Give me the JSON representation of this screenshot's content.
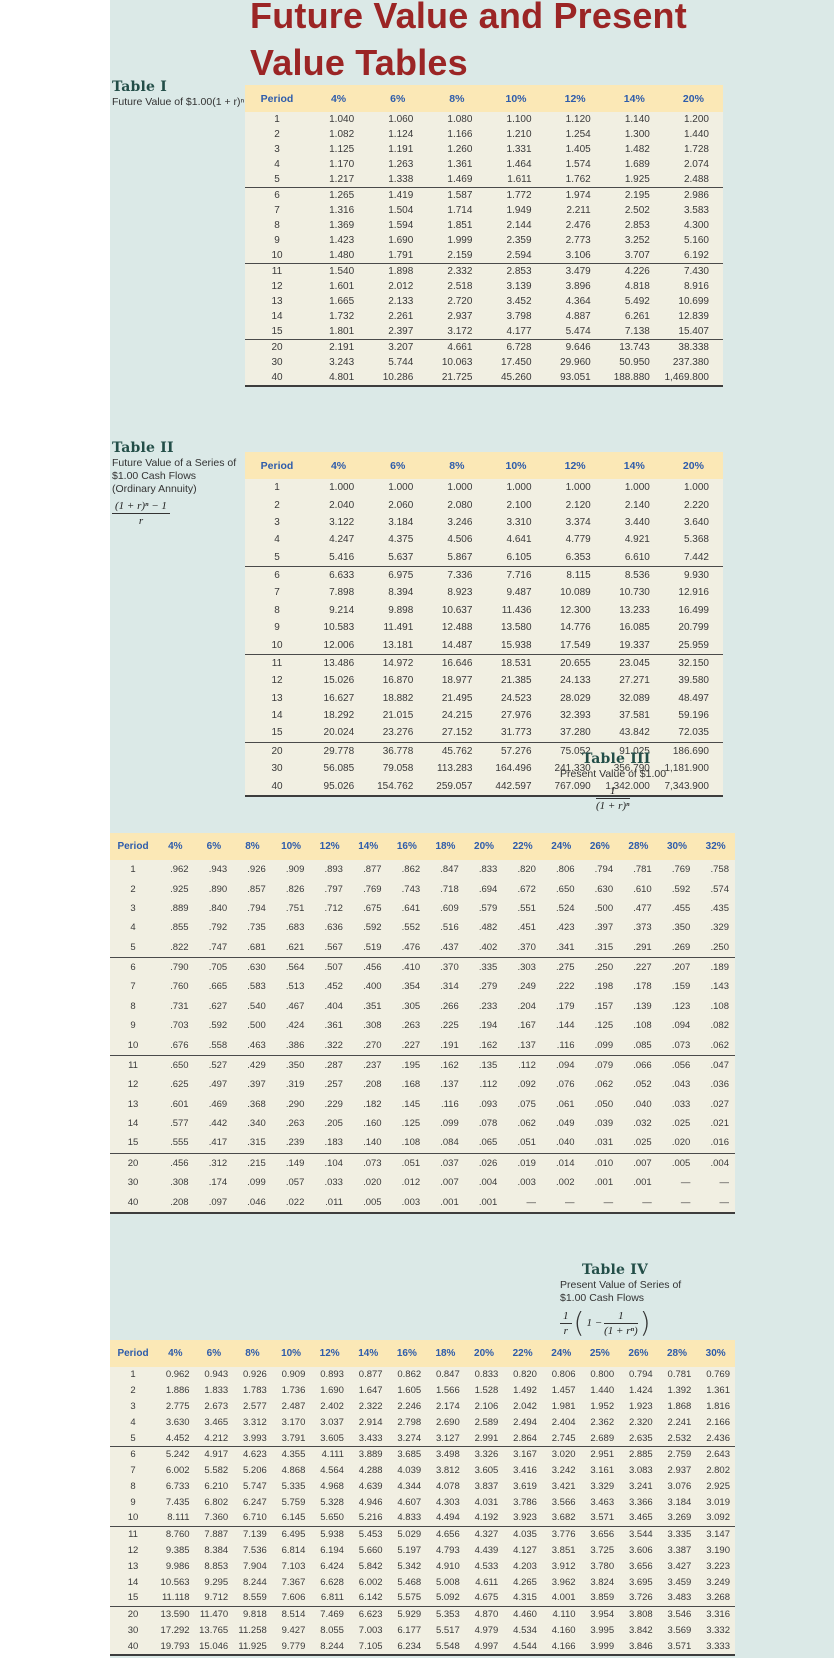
{
  "page": {
    "title_line1": "Future Value and Present",
    "title_line2": "Value Tables"
  },
  "colors": {
    "page_bg": "#dbe9e7",
    "title_text": "#9b2525",
    "table_label_text": "#234e48",
    "header_band": "#fbe8b6",
    "header_text": "#2e5cab",
    "table_body": "#f1efe2"
  },
  "tables": [
    {
      "label": "Table I",
      "desc": [
        "Future Value of $1.00(1 + r)ⁿ"
      ],
      "columns": [
        "Period",
        "4%",
        "6%",
        "8%",
        "10%",
        "12%",
        "14%",
        "20%"
      ],
      "group_after": [
        4,
        9,
        14
      ],
      "rows": [
        [
          "1",
          "1.040",
          "1.060",
          "1.080",
          "1.100",
          "1.120",
          "1.140",
          "1.200"
        ],
        [
          "2",
          "1.082",
          "1.124",
          "1.166",
          "1.210",
          "1.254",
          "1.300",
          "1.440"
        ],
        [
          "3",
          "1.125",
          "1.191",
          "1.260",
          "1.331",
          "1.405",
          "1.482",
          "1.728"
        ],
        [
          "4",
          "1.170",
          "1.263",
          "1.361",
          "1.464",
          "1.574",
          "1.689",
          "2.074"
        ],
        [
          "5",
          "1.217",
          "1.338",
          "1.469",
          "1.611",
          "1.762",
          "1.925",
          "2.488"
        ],
        [
          "6",
          "1.265",
          "1.419",
          "1.587",
          "1.772",
          "1.974",
          "2.195",
          "2.986"
        ],
        [
          "7",
          "1.316",
          "1.504",
          "1.714",
          "1.949",
          "2.211",
          "2.502",
          "3.583"
        ],
        [
          "8",
          "1.369",
          "1.594",
          "1.851",
          "2.144",
          "2.476",
          "2.853",
          "4.300"
        ],
        [
          "9",
          "1.423",
          "1.690",
          "1.999",
          "2.359",
          "2.773",
          "3.252",
          "5.160"
        ],
        [
          "10",
          "1.480",
          "1.791",
          "2.159",
          "2.594",
          "3.106",
          "3.707",
          "6.192"
        ],
        [
          "11",
          "1.540",
          "1.898",
          "2.332",
          "2.853",
          "3.479",
          "4.226",
          "7.430"
        ],
        [
          "12",
          "1.601",
          "2.012",
          "2.518",
          "3.139",
          "3.896",
          "4.818",
          "8.916"
        ],
        [
          "13",
          "1.665",
          "2.133",
          "2.720",
          "3.452",
          "4.364",
          "5.492",
          "10.699"
        ],
        [
          "14",
          "1.732",
          "2.261",
          "2.937",
          "3.798",
          "4.887",
          "6.261",
          "12.839"
        ],
        [
          "15",
          "1.801",
          "2.397",
          "3.172",
          "4.177",
          "5.474",
          "7.138",
          "15.407"
        ],
        [
          "20",
          "2.191",
          "3.207",
          "4.661",
          "6.728",
          "9.646",
          "13.743",
          "38.338"
        ],
        [
          "30",
          "3.243",
          "5.744",
          "10.063",
          "17.450",
          "29.960",
          "50.950",
          "237.380"
        ],
        [
          "40",
          "4.801",
          "10.286",
          "21.725",
          "45.260",
          "93.051",
          "188.880",
          "1,469.800"
        ]
      ]
    },
    {
      "label": "Table II",
      "desc": [
        "Future Value of a Series of",
        "$1.00 Cash Flows",
        "(Ordinary Annuity)"
      ],
      "formula": {
        "num": "(1 + r)ⁿ − 1",
        "den": "r"
      },
      "columns": [
        "Period",
        "4%",
        "6%",
        "8%",
        "10%",
        "12%",
        "14%",
        "20%"
      ],
      "group_after": [
        4,
        9,
        14
      ],
      "rows": [
        [
          "1",
          "1.000",
          "1.000",
          "1.000",
          "1.000",
          "1.000",
          "1.000",
          "1.000"
        ],
        [
          "2",
          "2.040",
          "2.060",
          "2.080",
          "2.100",
          "2.120",
          "2.140",
          "2.220"
        ],
        [
          "3",
          "3.122",
          "3.184",
          "3.246",
          "3.310",
          "3.374",
          "3.440",
          "3.640"
        ],
        [
          "4",
          "4.247",
          "4.375",
          "4.506",
          "4.641",
          "4.779",
          "4.921",
          "5.368"
        ],
        [
          "5",
          "5.416",
          "5.637",
          "5.867",
          "6.105",
          "6.353",
          "6.610",
          "7.442"
        ],
        [
          "6",
          "6.633",
          "6.975",
          "7.336",
          "7.716",
          "8.115",
          "8.536",
          "9.930"
        ],
        [
          "7",
          "7.898",
          "8.394",
          "8.923",
          "9.487",
          "10.089",
          "10.730",
          "12.916"
        ],
        [
          "8",
          "9.214",
          "9.898",
          "10.637",
          "11.436",
          "12.300",
          "13.233",
          "16.499"
        ],
        [
          "9",
          "10.583",
          "11.491",
          "12.488",
          "13.580",
          "14.776",
          "16.085",
          "20.799"
        ],
        [
          "10",
          "12.006",
          "13.181",
          "14.487",
          "15.938",
          "17.549",
          "19.337",
          "25.959"
        ],
        [
          "11",
          "13.486",
          "14.972",
          "16.646",
          "18.531",
          "20.655",
          "23.045",
          "32.150"
        ],
        [
          "12",
          "15.026",
          "16.870",
          "18.977",
          "21.385",
          "24.133",
          "27.271",
          "39.580"
        ],
        [
          "13",
          "16.627",
          "18.882",
          "21.495",
          "24.523",
          "28.029",
          "32.089",
          "48.497"
        ],
        [
          "14",
          "18.292",
          "21.015",
          "24.215",
          "27.976",
          "32.393",
          "37.581",
          "59.196"
        ],
        [
          "15",
          "20.024",
          "23.276",
          "27.152",
          "31.773",
          "37.280",
          "43.842",
          "72.035"
        ],
        [
          "20",
          "29.778",
          "36.778",
          "45.762",
          "57.276",
          "75.052",
          "91.025",
          "186.690"
        ],
        [
          "30",
          "56.085",
          "79.058",
          "113.283",
          "164.496",
          "241.330",
          "356.790",
          "1,181.900"
        ],
        [
          "40",
          "95.026",
          "154.762",
          "259.057",
          "442.597",
          "767.090",
          "1,342.000",
          "7,343.900"
        ]
      ]
    },
    {
      "label": "Table III",
      "desc": [
        "Present Value of $1.00"
      ],
      "formula": {
        "num": "1",
        "den": "(1 + r)ⁿ"
      },
      "columns": [
        "Period",
        "4%",
        "6%",
        "8%",
        "10%",
        "12%",
        "14%",
        "16%",
        "18%",
        "20%",
        "22%",
        "24%",
        "26%",
        "28%",
        "30%",
        "32%"
      ],
      "group_after": [
        4,
        9,
        14
      ],
      "rows": [
        [
          "1",
          ".962",
          ".943",
          ".926",
          ".909",
          ".893",
          ".877",
          ".862",
          ".847",
          ".833",
          ".820",
          ".806",
          ".794",
          ".781",
          ".769",
          ".758"
        ],
        [
          "2",
          ".925",
          ".890",
          ".857",
          ".826",
          ".797",
          ".769",
          ".743",
          ".718",
          ".694",
          ".672",
          ".650",
          ".630",
          ".610",
          ".592",
          ".574"
        ],
        [
          "3",
          ".889",
          ".840",
          ".794",
          ".751",
          ".712",
          ".675",
          ".641",
          ".609",
          ".579",
          ".551",
          ".524",
          ".500",
          ".477",
          ".455",
          ".435"
        ],
        [
          "4",
          ".855",
          ".792",
          ".735",
          ".683",
          ".636",
          ".592",
          ".552",
          ".516",
          ".482",
          ".451",
          ".423",
          ".397",
          ".373",
          ".350",
          ".329"
        ],
        [
          "5",
          ".822",
          ".747",
          ".681",
          ".621",
          ".567",
          ".519",
          ".476",
          ".437",
          ".402",
          ".370",
          ".341",
          ".315",
          ".291",
          ".269",
          ".250"
        ],
        [
          "6",
          ".790",
          ".705",
          ".630",
          ".564",
          ".507",
          ".456",
          ".410",
          ".370",
          ".335",
          ".303",
          ".275",
          ".250",
          ".227",
          ".207",
          ".189"
        ],
        [
          "7",
          ".760",
          ".665",
          ".583",
          ".513",
          ".452",
          ".400",
          ".354",
          ".314",
          ".279",
          ".249",
          ".222",
          ".198",
          ".178",
          ".159",
          ".143"
        ],
        [
          "8",
          ".731",
          ".627",
          ".540",
          ".467",
          ".404",
          ".351",
          ".305",
          ".266",
          ".233",
          ".204",
          ".179",
          ".157",
          ".139",
          ".123",
          ".108"
        ],
        [
          "9",
          ".703",
          ".592",
          ".500",
          ".424",
          ".361",
          ".308",
          ".263",
          ".225",
          ".194",
          ".167",
          ".144",
          ".125",
          ".108",
          ".094",
          ".082"
        ],
        [
          "10",
          ".676",
          ".558",
          ".463",
          ".386",
          ".322",
          ".270",
          ".227",
          ".191",
          ".162",
          ".137",
          ".116",
          ".099",
          ".085",
          ".073",
          ".062"
        ],
        [
          "11",
          ".650",
          ".527",
          ".429",
          ".350",
          ".287",
          ".237",
          ".195",
          ".162",
          ".135",
          ".112",
          ".094",
          ".079",
          ".066",
          ".056",
          ".047"
        ],
        [
          "12",
          ".625",
          ".497",
          ".397",
          ".319",
          ".257",
          ".208",
          ".168",
          ".137",
          ".112",
          ".092",
          ".076",
          ".062",
          ".052",
          ".043",
          ".036"
        ],
        [
          "13",
          ".601",
          ".469",
          ".368",
          ".290",
          ".229",
          ".182",
          ".145",
          ".116",
          ".093",
          ".075",
          ".061",
          ".050",
          ".040",
          ".033",
          ".027"
        ],
        [
          "14",
          ".577",
          ".442",
          ".340",
          ".263",
          ".205",
          ".160",
          ".125",
          ".099",
          ".078",
          ".062",
          ".049",
          ".039",
          ".032",
          ".025",
          ".021"
        ],
        [
          "15",
          ".555",
          ".417",
          ".315",
          ".239",
          ".183",
          ".140",
          ".108",
          ".084",
          ".065",
          ".051",
          ".040",
          ".031",
          ".025",
          ".020",
          ".016"
        ],
        [
          "20",
          ".456",
          ".312",
          ".215",
          ".149",
          ".104",
          ".073",
          ".051",
          ".037",
          ".026",
          ".019",
          ".014",
          ".010",
          ".007",
          ".005",
          ".004"
        ],
        [
          "30",
          ".308",
          ".174",
          ".099",
          ".057",
          ".033",
          ".020",
          ".012",
          ".007",
          ".004",
          ".003",
          ".002",
          ".001",
          ".001",
          "—",
          "—"
        ],
        [
          "40",
          ".208",
          ".097",
          ".046",
          ".022",
          ".011",
          ".005",
          ".003",
          ".001",
          ".001",
          "—",
          "—",
          "—",
          "—",
          "—",
          "—"
        ]
      ]
    },
    {
      "label": "Table IV",
      "desc": [
        "Present Value of Series of",
        "$1.00 Cash Flows"
      ],
      "formula": {
        "frac1_num": "1",
        "frac1_den": "r",
        "inner_prefix": "1 −",
        "frac2_num": "1",
        "frac2_den": "(1 + rⁿ)"
      },
      "columns": [
        "Period",
        "4%",
        "6%",
        "8%",
        "10%",
        "12%",
        "14%",
        "16%",
        "18%",
        "20%",
        "22%",
        "24%",
        "25%",
        "26%",
        "28%",
        "30%"
      ],
      "group_after": [
        4,
        9,
        14
      ],
      "rows": [
        [
          "1",
          "0.962",
          "0.943",
          "0.926",
          "0.909",
          "0.893",
          "0.877",
          "0.862",
          "0.847",
          "0.833",
          "0.820",
          "0.806",
          "0.800",
          "0.794",
          "0.781",
          "0.769"
        ],
        [
          "2",
          "1.886",
          "1.833",
          "1.783",
          "1.736",
          "1.690",
          "1.647",
          "1.605",
          "1.566",
          "1.528",
          "1.492",
          "1.457",
          "1.440",
          "1.424",
          "1.392",
          "1.361"
        ],
        [
          "3",
          "2.775",
          "2.673",
          "2.577",
          "2.487",
          "2.402",
          "2.322",
          "2.246",
          "2.174",
          "2.106",
          "2.042",
          "1.981",
          "1.952",
          "1.923",
          "1.868",
          "1.816"
        ],
        [
          "4",
          "3.630",
          "3.465",
          "3.312",
          "3.170",
          "3.037",
          "2.914",
          "2.798",
          "2.690",
          "2.589",
          "2.494",
          "2.404",
          "2.362",
          "2.320",
          "2.241",
          "2.166"
        ],
        [
          "5",
          "4.452",
          "4.212",
          "3.993",
          "3.791",
          "3.605",
          "3.433",
          "3.274",
          "3.127",
          "2.991",
          "2.864",
          "2.745",
          "2.689",
          "2.635",
          "2.532",
          "2.436"
        ],
        [
          "6",
          "5.242",
          "4.917",
          "4.623",
          "4.355",
          "4.111",
          "3.889",
          "3.685",
          "3.498",
          "3.326",
          "3.167",
          "3.020",
          "2.951",
          "2.885",
          "2.759",
          "2.643"
        ],
        [
          "7",
          "6.002",
          "5.582",
          "5.206",
          "4.868",
          "4.564",
          "4.288",
          "4.039",
          "3.812",
          "3.605",
          "3.416",
          "3.242",
          "3.161",
          "3.083",
          "2.937",
          "2.802"
        ],
        [
          "8",
          "6.733",
          "6.210",
          "5.747",
          "5.335",
          "4.968",
          "4.639",
          "4.344",
          "4.078",
          "3.837",
          "3.619",
          "3.421",
          "3.329",
          "3.241",
          "3.076",
          "2.925"
        ],
        [
          "9",
          "7.435",
          "6.802",
          "6.247",
          "5.759",
          "5.328",
          "4.946",
          "4.607",
          "4.303",
          "4.031",
          "3.786",
          "3.566",
          "3.463",
          "3.366",
          "3.184",
          "3.019"
        ],
        [
          "10",
          "8.111",
          "7.360",
          "6.710",
          "6.145",
          "5.650",
          "5.216",
          "4.833",
          "4.494",
          "4.192",
          "3.923",
          "3.682",
          "3.571",
          "3.465",
          "3.269",
          "3.092"
        ],
        [
          "11",
          "8.760",
          "7.887",
          "7.139",
          "6.495",
          "5.938",
          "5.453",
          "5.029",
          "4.656",
          "4.327",
          "4.035",
          "3.776",
          "3.656",
          "3.544",
          "3.335",
          "3.147"
        ],
        [
          "12",
          "9.385",
          "8.384",
          "7.536",
          "6.814",
          "6.194",
          "5.660",
          "5.197",
          "4.793",
          "4.439",
          "4.127",
          "3.851",
          "3.725",
          "3.606",
          "3.387",
          "3.190"
        ],
        [
          "13",
          "9.986",
          "8.853",
          "7.904",
          "7.103",
          "6.424",
          "5.842",
          "5.342",
          "4.910",
          "4.533",
          "4.203",
          "3.912",
          "3.780",
          "3.656",
          "3.427",
          "3.223"
        ],
        [
          "14",
          "10.563",
          "9.295",
          "8.244",
          "7.367",
          "6.628",
          "6.002",
          "5.468",
          "5.008",
          "4.611",
          "4.265",
          "3.962",
          "3.824",
          "3.695",
          "3.459",
          "3.249"
        ],
        [
          "15",
          "11.118",
          "9.712",
          "8.559",
          "7.606",
          "6.811",
          "6.142",
          "5.575",
          "5.092",
          "4.675",
          "4.315",
          "4.001",
          "3.859",
          "3.726",
          "3.483",
          "3.268"
        ],
        [
          "20",
          "13.590",
          "11.470",
          "9.818",
          "8.514",
          "7.469",
          "6.623",
          "5.929",
          "5.353",
          "4.870",
          "4.460",
          "4.110",
          "3.954",
          "3.808",
          "3.546",
          "3.316"
        ],
        [
          "30",
          "17.292",
          "13.765",
          "11.258",
          "9.427",
          "8.055",
          "7.003",
          "6.177",
          "5.517",
          "4.979",
          "4.534",
          "4.160",
          "3.995",
          "3.842",
          "3.569",
          "3.332"
        ],
        [
          "40",
          "19.793",
          "15.046",
          "11.925",
          "9.779",
          "8.244",
          "7.105",
          "6.234",
          "5.548",
          "4.997",
          "4.544",
          "4.166",
          "3.999",
          "3.846",
          "3.571",
          "3.333"
        ]
      ]
    }
  ]
}
